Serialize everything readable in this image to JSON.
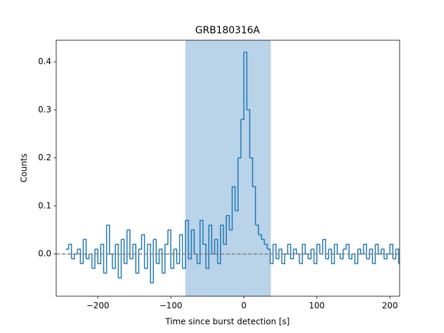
{
  "chart_data": {
    "type": "step",
    "title": "GRB180316A",
    "xlabel": "Time since burst detection [s]",
    "ylabel": "Counts",
    "x": [
      -244,
      -240,
      -236,
      -232,
      -228,
      -224,
      -220,
      -216,
      -212,
      -208,
      -204,
      -200,
      -196,
      -192,
      -188,
      -184,
      -180,
      -176,
      -172,
      -168,
      -164,
      -160,
      -156,
      -152,
      -148,
      -144,
      -140,
      -136,
      -132,
      -128,
      -124,
      -120,
      -116,
      -112,
      -108,
      -104,
      -100,
      -96,
      -92,
      -88,
      -84,
      -80,
      -76,
      -72,
      -68,
      -64,
      -60,
      -56,
      -52,
      -48,
      -44,
      -40,
      -36,
      -32,
      -28,
      -24,
      -20,
      -16,
      -12,
      -8,
      -4,
      0,
      4,
      8,
      12,
      16,
      20,
      24,
      28,
      32,
      36,
      40,
      44,
      48,
      52,
      56,
      60,
      64,
      68,
      72,
      76,
      80,
      84,
      88,
      92,
      96,
      100,
      104,
      108,
      112,
      116,
      120,
      124,
      128,
      132,
      136,
      140,
      144,
      148,
      152,
      156,
      160,
      164,
      168,
      172,
      176,
      180,
      184,
      188,
      192,
      196,
      200,
      204,
      208,
      212
    ],
    "series": [
      {
        "color": "#1f77b4",
        "values": [
          0.01,
          0.02,
          -0.01,
          0.0,
          0.01,
          -0.02,
          0.03,
          -0.01,
          0.0,
          -0.03,
          0.01,
          -0.02,
          0.02,
          -0.04,
          0.06,
          0.0,
          -0.03,
          0.02,
          -0.05,
          0.03,
          -0.02,
          0.05,
          -0.01,
          0.02,
          -0.04,
          0.01,
          0.04,
          -0.03,
          0.02,
          -0.06,
          0.03,
          -0.02,
          0.01,
          -0.04,
          0.02,
          0.05,
          -0.03,
          0.01,
          -0.02,
          0.04,
          -0.03,
          0.07,
          -0.01,
          0.05,
          0.0,
          -0.02,
          0.07,
          0.02,
          -0.03,
          0.06,
          0.0,
          0.03,
          -0.02,
          0.06,
          0.02,
          0.08,
          0.05,
          0.14,
          0.09,
          0.2,
          0.28,
          0.42,
          0.3,
          0.2,
          0.14,
          0.06,
          0.04,
          0.03,
          0.02,
          0.01,
          -0.02,
          0.02,
          -0.01,
          0.01,
          -0.02,
          0.0,
          0.02,
          -0.01,
          0.01,
          0.0,
          -0.02,
          0.02,
          0.0,
          -0.01,
          0.01,
          -0.02,
          0.02,
          0.0,
          0.03,
          -0.01,
          0.01,
          -0.02,
          0.02,
          0.0,
          -0.01,
          0.01,
          0.02,
          -0.01,
          0.0,
          -0.02,
          0.01,
          0.0,
          0.02,
          -0.01,
          0.01,
          -0.02,
          0.02,
          0.0,
          0.01,
          -0.01,
          0.0,
          0.02,
          -0.01,
          0.01,
          -0.02
        ]
      }
    ],
    "span": [
      -80,
      37
    ],
    "span_color": "#b9d3e9",
    "hline": 0,
    "hline_color": "#808080",
    "xlim": [
      -257,
      213.3
    ],
    "ylim": [
      -0.088,
      0.445
    ],
    "xticks": [
      {
        "value": -200,
        "label": "−200"
      },
      {
        "value": -100,
        "label": "−100"
      },
      0,
      100,
      200
    ],
    "yticks": [
      {
        "value": 0,
        "label": "0.0"
      },
      0.1,
      0.2,
      0.3,
      0.4
    ]
  }
}
